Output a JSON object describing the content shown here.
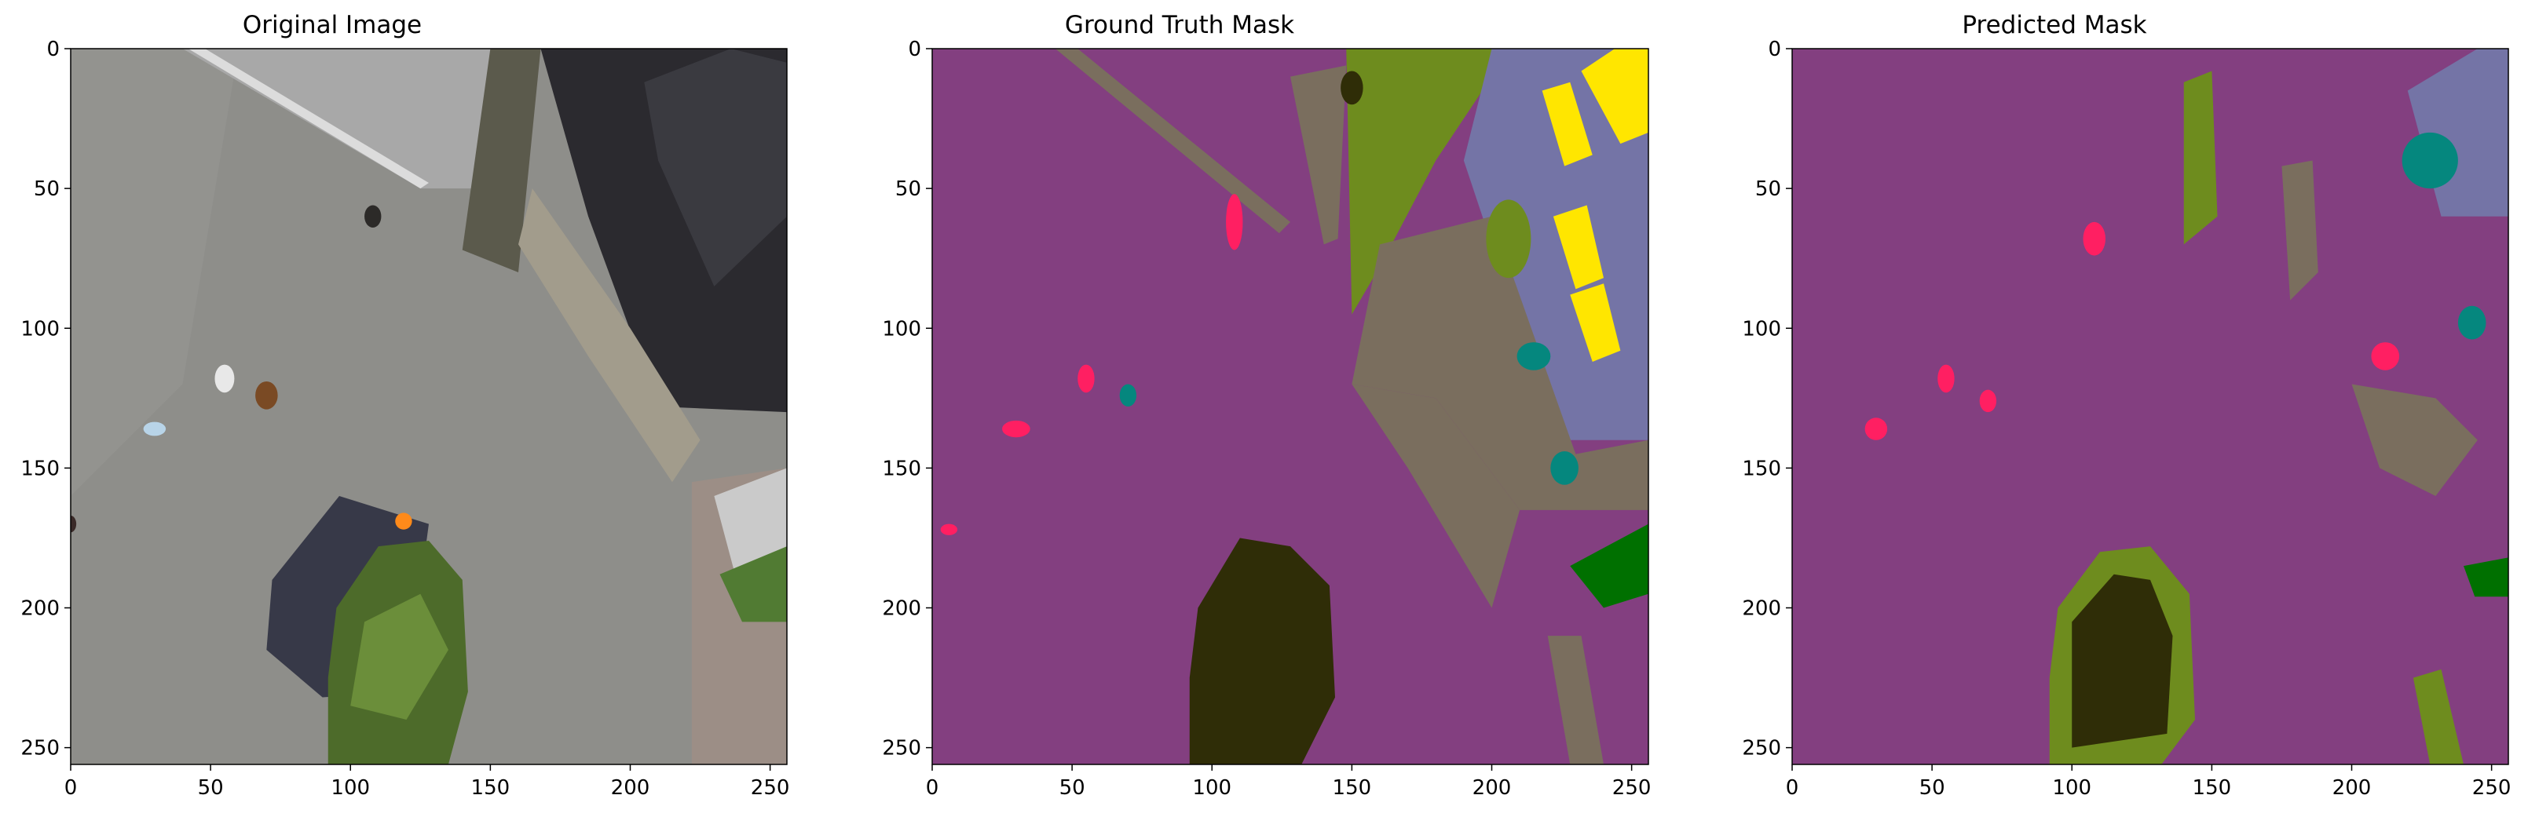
{
  "panels": [
    {
      "title": "Original Image"
    },
    {
      "title": "Ground Truth Mask"
    },
    {
      "title": "Predicted Mask"
    }
  ],
  "axes": {
    "xticks": [
      "0",
      "50",
      "100",
      "150",
      "200",
      "250"
    ],
    "yticks": [
      "0",
      "50",
      "100",
      "150",
      "200",
      "250"
    ],
    "xlim": [
      0,
      256
    ],
    "ylim": [
      256,
      0
    ]
  },
  "colors": {
    "background_class": "#833f80",
    "paved_area": "#7a6e5e",
    "vegetation": "#6e8c1e",
    "tree": "#2f2d07",
    "person": "#ff1f62",
    "roof": "#7474a6",
    "car_yellow": "#ffe600",
    "teal": "#05877e",
    "green": "#007000",
    "asphalt_photo": "#8e8e8a"
  }
}
